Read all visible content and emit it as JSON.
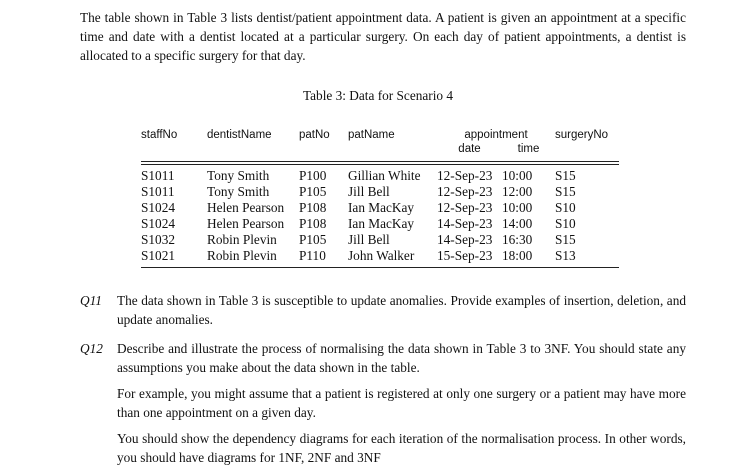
{
  "intro": "The table shown in Table 3 lists dentist/patient appointment data. A patient is given an appointment at a specific time and date with a dentist located at a particular surgery. On each day of patient appointments, a dentist is allocated to a specific surgery for that day.",
  "table": {
    "caption": "Table 3: Data for Scenario 4",
    "header": [
      "staffNo",
      "dentistName",
      "patNo",
      "patName",
      "appointment",
      "surgeryNo"
    ],
    "subheader": [
      "date",
      "time"
    ],
    "rows": [
      [
        "S1011",
        "Tony Smith",
        "P100",
        "Gillian White",
        "12-Sep-23",
        "10:00",
        "S15"
      ],
      [
        "S1011",
        "Tony Smith",
        "P105",
        "Jill Bell",
        "12-Sep-23",
        "12:00",
        "S15"
      ],
      [
        "S1024",
        "Helen Pearson",
        "P108",
        "Ian MacKay",
        "12-Sep-23",
        "10:00",
        "S10"
      ],
      [
        "S1024",
        "Helen Pearson",
        "P108",
        "Ian MacKay",
        "14-Sep-23",
        "14:00",
        "S10"
      ],
      [
        "S1032",
        "Robin Plevin",
        "P105",
        "Jill Bell",
        "14-Sep-23",
        "16:30",
        "S15"
      ],
      [
        "S1021",
        "Robin Plevin",
        "P110",
        "John Walker",
        "15-Sep-23",
        "18:00",
        "S13"
      ]
    ]
  },
  "questions": [
    {
      "label": "Q11",
      "paragraphs": [
        "The data shown in Table 3 is susceptible to update anomalies. Provide examples of insertion, deletion, and update anomalies."
      ]
    },
    {
      "label": "Q12",
      "paragraphs": [
        "Describe and illustrate the process of normalising the data shown in Table 3 to 3NF. You should state any assumptions you make about the data shown in the table.",
        "For example, you might assume that a patient is registered at only one surgery or a patient may have more than one appointment on a given day.",
        "You should show the dependency diagrams for each iteration of the normalisation process. In other words, you should have diagrams for 1NF, 2NF and 3NF"
      ]
    }
  ]
}
